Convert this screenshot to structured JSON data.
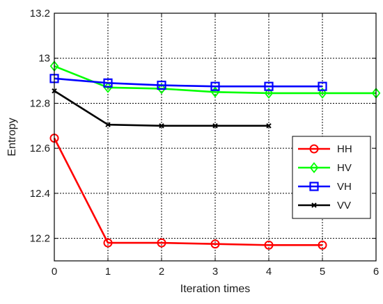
{
  "chart_data": {
    "type": "line",
    "xlabel": "Iteration times",
    "ylabel": "Entropy",
    "xlim": [
      0,
      6
    ],
    "ylim": [
      12.1,
      13.2
    ],
    "xticks": [
      0,
      1,
      2,
      3,
      4,
      5,
      6
    ],
    "xtick_labels": [
      "0",
      "1",
      "2",
      "3",
      "4",
      "5",
      "6"
    ],
    "yticks": [
      12.2,
      12.4,
      12.6,
      12.8,
      13.0,
      13.2
    ],
    "ytick_labels": [
      "12.2",
      "12.4",
      "12.6",
      "12.8",
      "13",
      "13.2"
    ],
    "grid": true,
    "grid_style": "dotted",
    "legend_position": "right",
    "series": [
      {
        "name": "HH",
        "color": "#ff0000",
        "marker": "circle",
        "x": [
          0,
          1,
          2,
          3,
          4,
          5
        ],
        "y": [
          12.645,
          12.18,
          12.18,
          12.175,
          12.17,
          12.17
        ]
      },
      {
        "name": "HV",
        "color": "#00ff00",
        "marker": "diamond",
        "x": [
          0,
          1,
          2,
          3,
          4,
          5,
          6
        ],
        "y": [
          12.965,
          12.87,
          12.865,
          12.85,
          12.845,
          12.845,
          12.845
        ]
      },
      {
        "name": "VH",
        "color": "#0000ff",
        "marker": "square",
        "x": [
          0,
          1,
          2,
          3,
          4,
          5
        ],
        "y": [
          12.91,
          12.89,
          12.88,
          12.875,
          12.875,
          12.875
        ]
      },
      {
        "name": "VV",
        "color": "#000000",
        "marker": "x",
        "x": [
          0,
          1,
          2,
          3,
          4
        ],
        "y": [
          12.855,
          12.705,
          12.7,
          12.7,
          12.7
        ]
      }
    ]
  }
}
